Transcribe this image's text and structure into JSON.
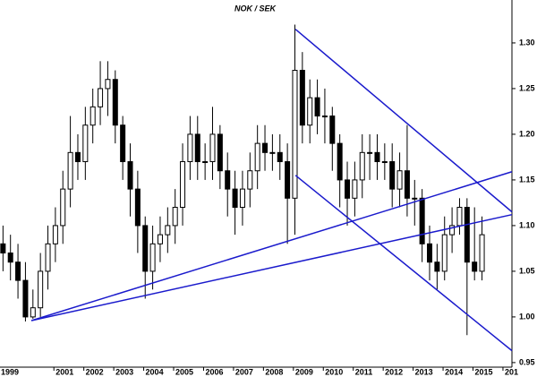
{
  "chart_data": {
    "type": "candlestick",
    "title": "NOK / SEK",
    "x": [
      1999.3,
      1999.55,
      1999.8,
      2000.05,
      2000.3,
      2000.55,
      2000.8,
      2001.05,
      2001.3,
      2001.55,
      2001.8,
      2002.05,
      2002.3,
      2002.55,
      2002.8,
      2003.05,
      2003.3,
      2003.55,
      2003.8,
      2004.05,
      2004.3,
      2004.55,
      2004.8,
      2005.05,
      2005.3,
      2005.55,
      2005.8,
      2006.05,
      2006.3,
      2006.55,
      2006.8,
      2007.05,
      2007.3,
      2007.55,
      2007.8,
      2008.05,
      2008.3,
      2008.55,
      2008.8,
      2009.05,
      2009.3,
      2009.55,
      2009.8,
      2010.05,
      2010.3,
      2010.55,
      2010.8,
      2011.05,
      2011.3,
      2011.55,
      2011.8,
      2012.05,
      2012.3,
      2012.55,
      2012.8,
      2013.05,
      2013.3,
      2013.55,
      2013.8,
      2014.05,
      2014.3,
      2014.55,
      2014.8,
      2015.05,
      2015.3
    ],
    "open": [
      1.08,
      1.07,
      1.06,
      1.04,
      1.0,
      1.01,
      1.05,
      1.08,
      1.1,
      1.14,
      1.18,
      1.17,
      1.21,
      1.23,
      1.25,
      1.26,
      1.21,
      1.17,
      1.14,
      1.1,
      1.05,
      1.08,
      1.09,
      1.1,
      1.12,
      1.17,
      1.2,
      1.17,
      1.17,
      1.2,
      1.16,
      1.14,
      1.12,
      1.14,
      1.16,
      1.19,
      1.18,
      1.18,
      1.17,
      1.13,
      1.27,
      1.21,
      1.24,
      1.22,
      1.22,
      1.19,
      1.15,
      1.13,
      1.15,
      1.18,
      1.18,
      1.17,
      1.17,
      1.14,
      1.16,
      1.13,
      1.13,
      1.08,
      1.06,
      1.05,
      1.09,
      1.1,
      1.12,
      1.06,
      1.05
    ],
    "high": [
      1.1,
      1.09,
      1.08,
      1.06,
      1.03,
      1.07,
      1.1,
      1.12,
      1.16,
      1.22,
      1.2,
      1.23,
      1.25,
      1.28,
      1.28,
      1.27,
      1.22,
      1.19,
      1.16,
      1.11,
      1.1,
      1.11,
      1.12,
      1.14,
      1.19,
      1.22,
      1.22,
      1.19,
      1.23,
      1.21,
      1.18,
      1.16,
      1.16,
      1.18,
      1.21,
      1.21,
      1.2,
      1.2,
      1.19,
      1.32,
      1.29,
      1.26,
      1.26,
      1.25,
      1.23,
      1.2,
      1.17,
      1.17,
      1.2,
      1.2,
      1.2,
      1.19,
      1.19,
      1.18,
      1.21,
      1.15,
      1.14,
      1.1,
      1.08,
      1.11,
      1.12,
      1.13,
      1.13,
      1.12,
      1.11
    ],
    "low": [
      1.05,
      1.04,
      1.02,
      0.995,
      0.998,
      1.0,
      1.03,
      1.06,
      1.08,
      1.12,
      1.15,
      1.15,
      1.19,
      1.21,
      1.22,
      1.19,
      1.15,
      1.11,
      1.07,
      1.02,
      1.03,
      1.06,
      1.07,
      1.08,
      1.1,
      1.15,
      1.15,
      1.15,
      1.15,
      1.14,
      1.11,
      1.09,
      1.1,
      1.12,
      1.14,
      1.16,
      1.16,
      1.15,
      1.08,
      1.09,
      1.19,
      1.19,
      1.2,
      1.19,
      1.16,
      1.12,
      1.1,
      1.11,
      1.13,
      1.15,
      1.15,
      1.15,
      1.12,
      1.12,
      1.11,
      1.1,
      1.06,
      1.04,
      1.03,
      1.04,
      1.07,
      1.09,
      0.98,
      1.04,
      1.04
    ],
    "close": [
      1.07,
      1.06,
      1.04,
      1.0,
      1.01,
      1.05,
      1.08,
      1.1,
      1.14,
      1.18,
      1.17,
      1.21,
      1.23,
      1.25,
      1.26,
      1.21,
      1.17,
      1.14,
      1.1,
      1.05,
      1.08,
      1.09,
      1.1,
      1.12,
      1.17,
      1.2,
      1.17,
      1.17,
      1.2,
      1.16,
      1.14,
      1.12,
      1.14,
      1.16,
      1.19,
      1.18,
      1.18,
      1.17,
      1.13,
      1.27,
      1.21,
      1.24,
      1.22,
      1.22,
      1.19,
      1.15,
      1.13,
      1.15,
      1.18,
      1.18,
      1.17,
      1.17,
      1.14,
      1.16,
      1.13,
      1.13,
      1.08,
      1.06,
      1.05,
      1.09,
      1.1,
      1.12,
      1.06,
      1.05,
      1.09
    ],
    "up_color": "#ffffff",
    "down_color": "#000000",
    "wick_color": "#000000",
    "trendlines": {
      "color": "#1a1acc",
      "lines": [
        {
          "x": [
            2000.25,
            2016.3
          ],
          "y": [
            0.996,
            1.159
          ]
        },
        {
          "x": [
            2000.25,
            2016.3
          ],
          "y": [
            0.996,
            1.112
          ]
        },
        {
          "x": [
            2009.07,
            2016.3
          ],
          "y": [
            1.315,
            1.115
          ]
        },
        {
          "x": [
            2009.07,
            2016.3
          ],
          "y": [
            1.155,
            0.963
          ]
        }
      ]
    },
    "xlim": [
      1999.2,
      2016.3
    ],
    "xticks": [
      1999,
      2001,
      2002,
      2003,
      2004,
      2005,
      2006,
      2007,
      2008,
      2009,
      2010,
      2011,
      2012,
      2013,
      2014,
      2015,
      {
        "value": 2016,
        "label": "201"
      }
    ],
    "ylim": [
      0.945,
      1.347
    ],
    "yticks": [
      {
        "value": 0.95,
        "label": "0.95"
      },
      {
        "value": 1.0,
        "label": "1.00"
      },
      {
        "value": 1.05,
        "label": "1.05"
      },
      {
        "value": 1.1,
        "label": "1.10"
      },
      {
        "value": 1.15,
        "label": "1.15"
      },
      {
        "value": 1.2,
        "label": "1.20"
      },
      {
        "value": 1.25,
        "label": "1.25"
      },
      {
        "value": 1.3,
        "label": "1.30"
      }
    ],
    "grid": false
  }
}
